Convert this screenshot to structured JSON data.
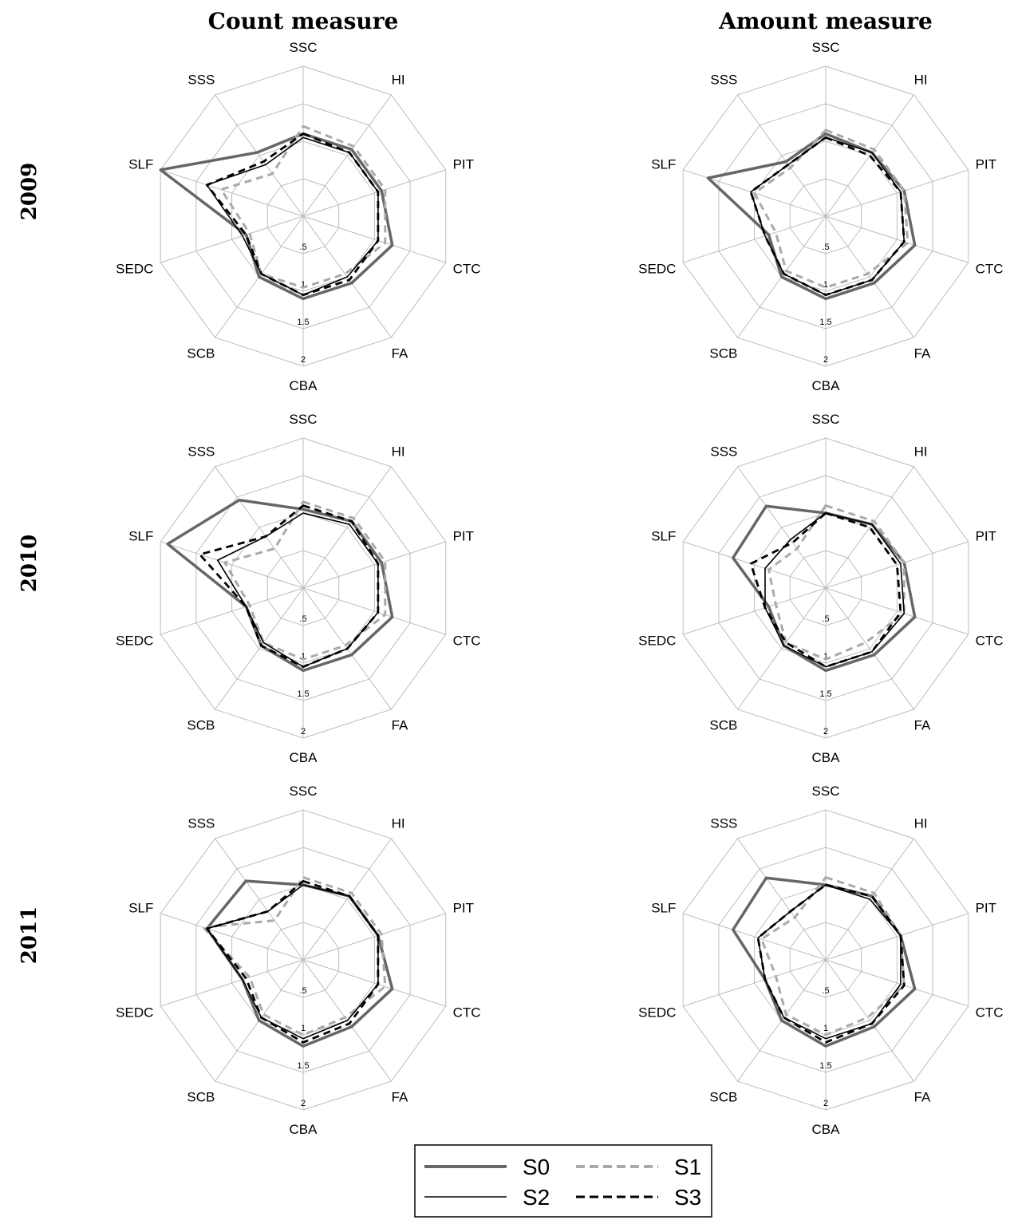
{
  "chart_data": {
    "type": "radar",
    "column_titles": [
      "Count measure",
      "Amount measure"
    ],
    "row_titles": [
      "2009",
      "2010",
      "2011"
    ],
    "axes": [
      "SSC",
      "HI",
      "PIT",
      "CTC",
      "FA",
      "CBA",
      "SCB",
      "SEDC",
      "SLF",
      "SSS"
    ],
    "tick_labels": [
      ".5",
      "1",
      "1.5",
      "2"
    ],
    "ylim": [
      0,
      2
    ],
    "grid_rings": [
      0.5,
      1,
      1.5,
      2
    ],
    "legend": [
      {
        "name": "S0",
        "color": "#666666",
        "style": "solid-thick"
      },
      {
        "name": "S1",
        "color": "#aaaaaa",
        "style": "dashed"
      },
      {
        "name": "S2",
        "color": "#000000",
        "style": "solid-thin"
      },
      {
        "name": "S3",
        "color": "#000000",
        "style": "dashed"
      }
    ],
    "panels": [
      {
        "column": "Count measure",
        "year": "2009",
        "series": [
          {
            "name": "S0",
            "values": [
              1.1,
              1.1,
              1.1,
              1.25,
              1.1,
              1.1,
              1.0,
              0.8,
              2.0,
              1.05
            ]
          },
          {
            "name": "S1",
            "values": [
              1.2,
              1.15,
              1.15,
              1.15,
              0.95,
              0.95,
              0.95,
              0.75,
              1.15,
              0.7
            ]
          },
          {
            "name": "S2",
            "values": [
              1.05,
              1.05,
              1.05,
              1.05,
              1.0,
              1.05,
              0.95,
              0.85,
              1.35,
              0.85
            ]
          },
          {
            "name": "S3",
            "values": [
              1.1,
              1.05,
              1.05,
              1.05,
              1.05,
              1.05,
              0.95,
              0.8,
              1.35,
              0.9
            ]
          }
        ]
      },
      {
        "column": "Amount measure",
        "year": "2009",
        "series": [
          {
            "name": "S0",
            "values": [
              1.1,
              1.05,
              1.1,
              1.25,
              1.1,
              1.1,
              1.0,
              0.8,
              1.65,
              0.9
            ]
          },
          {
            "name": "S1",
            "values": [
              1.15,
              1.1,
              1.1,
              1.15,
              0.95,
              0.95,
              0.9,
              0.7,
              1.0,
              0.8
            ]
          },
          {
            "name": "S2",
            "values": [
              1.05,
              1.05,
              1.05,
              1.1,
              1.05,
              1.05,
              0.95,
              0.85,
              1.05,
              0.85
            ]
          },
          {
            "name": "S3",
            "values": [
              1.05,
              1.0,
              1.05,
              1.1,
              1.05,
              1.05,
              0.95,
              0.85,
              1.05,
              0.85
            ]
          }
        ]
      },
      {
        "column": "Count measure",
        "year": "2010",
        "series": [
          {
            "name": "S0",
            "values": [
              1.05,
              1.1,
              1.1,
              1.25,
              1.1,
              1.1,
              0.95,
              0.8,
              1.9,
              1.45
            ]
          },
          {
            "name": "S1",
            "values": [
              1.15,
              1.15,
              1.15,
              1.15,
              0.95,
              0.95,
              0.9,
              0.75,
              1.1,
              0.65
            ]
          },
          {
            "name": "S2",
            "values": [
              1.0,
              1.05,
              1.05,
              1.05,
              1.0,
              1.05,
              0.9,
              0.8,
              1.2,
              0.85
            ]
          },
          {
            "name": "S3",
            "values": [
              1.1,
              1.1,
              1.05,
              1.05,
              1.0,
              1.05,
              0.95,
              0.8,
              1.45,
              0.85
            ]
          }
        ]
      },
      {
        "column": "Amount measure",
        "year": "2010",
        "series": [
          {
            "name": "S0",
            "values": [
              1.0,
              1.05,
              1.1,
              1.25,
              1.1,
              1.1,
              0.95,
              0.8,
              1.3,
              1.35
            ]
          },
          {
            "name": "S1",
            "values": [
              1.1,
              1.1,
              1.1,
              1.1,
              0.9,
              0.95,
              0.9,
              0.7,
              0.8,
              0.65
            ]
          },
          {
            "name": "S2",
            "values": [
              1.0,
              1.05,
              1.05,
              1.1,
              1.05,
              1.05,
              0.95,
              0.85,
              0.85,
              0.8
            ]
          },
          {
            "name": "S3",
            "values": [
              1.0,
              1.0,
              1.0,
              1.05,
              1.05,
              1.05,
              0.9,
              0.85,
              1.05,
              0.75
            ]
          }
        ]
      },
      {
        "column": "Count measure",
        "year": "2011",
        "series": [
          {
            "name": "S0",
            "values": [
              1.0,
              1.05,
              1.05,
              1.25,
              1.1,
              1.15,
              1.0,
              0.85,
              1.35,
              1.3
            ]
          },
          {
            "name": "S1",
            "values": [
              1.1,
              1.1,
              1.1,
              1.15,
              0.95,
              1.0,
              0.9,
              0.75,
              1.4,
              0.65
            ]
          },
          {
            "name": "S2",
            "values": [
              1.0,
              1.05,
              1.05,
              1.05,
              1.0,
              1.05,
              0.95,
              0.85,
              1.35,
              0.8
            ]
          },
          {
            "name": "S3",
            "values": [
              1.05,
              1.05,
              1.05,
              1.05,
              1.05,
              1.1,
              0.95,
              0.8,
              1.35,
              0.8
            ]
          }
        ]
      },
      {
        "column": "Amount measure",
        "year": "2011",
        "series": [
          {
            "name": "S0",
            "values": [
              1.0,
              1.05,
              1.05,
              1.25,
              1.1,
              1.15,
              1.0,
              0.85,
              1.3,
              1.35
            ]
          },
          {
            "name": "S1",
            "values": [
              1.1,
              1.1,
              1.05,
              1.1,
              0.95,
              1.0,
              0.9,
              0.7,
              0.9,
              0.7
            ]
          },
          {
            "name": "S2",
            "values": [
              1.0,
              1.0,
              1.05,
              1.05,
              1.05,
              1.05,
              0.95,
              0.85,
              0.95,
              0.8
            ]
          },
          {
            "name": "S3",
            "values": [
              1.0,
              1.05,
              1.05,
              1.1,
              1.05,
              1.1,
              0.95,
              0.85,
              0.95,
              0.8
            ]
          }
        ]
      }
    ]
  }
}
